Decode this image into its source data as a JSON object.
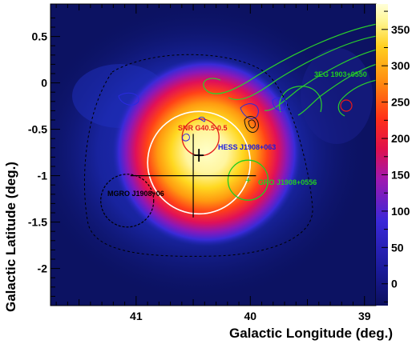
{
  "chart_data": {
    "type": "heatmap",
    "xlabel": "Galactic Longitude (deg.)",
    "ylabel": "Galactic Latitude (deg.)",
    "xlim": [
      41.75,
      38.9
    ],
    "ylim": [
      -2.4,
      0.85
    ],
    "x_ticks": [
      41,
      40,
      39
    ],
    "x_tick_labels": [
      "41",
      "40",
      "39"
    ],
    "y_ticks": [
      0.5,
      0,
      -0.5,
      -1,
      -1.5,
      -2
    ],
    "y_tick_labels": [
      "0.5",
      "0",
      "-0.5",
      "-1",
      "-1.5",
      "-2"
    ],
    "colorbar": {
      "range": [
        -30,
        385
      ],
      "ticks": [
        350,
        300,
        250,
        200,
        150,
        100,
        50,
        0
      ],
      "tick_labels": [
        "350",
        "300",
        "250",
        "200",
        "150",
        "100",
        "50",
        "0"
      ]
    },
    "sources": [
      {
        "label": "SNR G40.5-0.5",
        "l": 40.52,
        "b": -0.5,
        "color": "#e51a1a"
      },
      {
        "label": "HESS J1908+063",
        "l": 40.4,
        "b": -0.75,
        "color": "#1a1ae0"
      },
      {
        "label": "MGRO J1908+06",
        "l": 41.05,
        "b": -1.2,
        "color": "#000000"
      },
      {
        "label": "GRO J1908+0556",
        "l": 40.02,
        "b": -1.1,
        "color": "#22cc22"
      },
      {
        "label": "3EG 1903+0550",
        "l": 39.22,
        "b": 0.05,
        "color": "#22cc22"
      }
    ],
    "grid": false
  }
}
